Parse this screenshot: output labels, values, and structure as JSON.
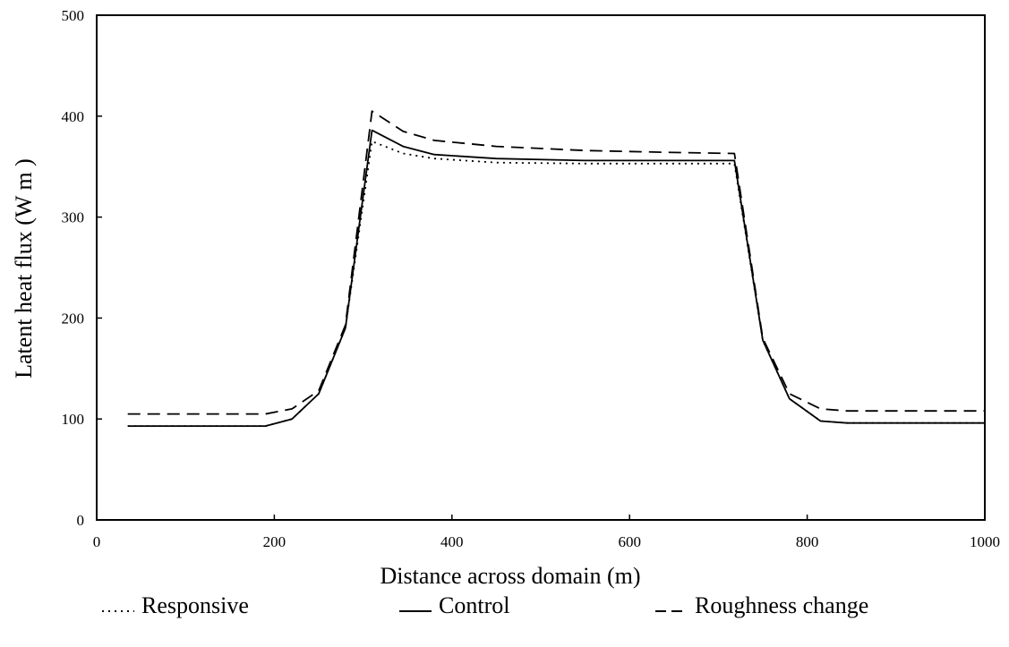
{
  "chart_data": {
    "type": "line",
    "xlabel": "Distance across domain (m)",
    "ylabel": "Latent heat flux (W m  )",
    "xlim": [
      0,
      1000
    ],
    "ylim": [
      0,
      500
    ],
    "xticks": [
      0,
      200,
      400,
      600,
      800,
      1000
    ],
    "yticks": [
      0,
      100,
      200,
      300,
      400,
      500
    ],
    "grid": false,
    "legend_position": "bottom",
    "series": [
      {
        "name": "Responsive",
        "style": "dotted",
        "x": [
          35,
          190,
          220,
          250,
          280,
          310,
          345,
          380,
          450,
          550,
          650,
          718,
          750,
          780,
          815,
          845,
          900,
          1000
        ],
        "y": [
          93,
          93,
          100,
          125,
          190,
          375,
          363,
          358,
          354,
          353,
          353,
          353,
          178,
          120,
          98,
          96,
          96,
          96
        ]
      },
      {
        "name": "Control",
        "style": "solid",
        "x": [
          35,
          190,
          220,
          250,
          280,
          310,
          345,
          380,
          450,
          550,
          650,
          718,
          750,
          780,
          815,
          845,
          900,
          1000
        ],
        "y": [
          93,
          93,
          100,
          125,
          190,
          386,
          370,
          362,
          358,
          356,
          356,
          356,
          178,
          120,
          98,
          96,
          96,
          96
        ]
      },
      {
        "name": "Roughness change",
        "style": "dashed",
        "x": [
          35,
          190,
          220,
          250,
          280,
          310,
          345,
          380,
          450,
          550,
          650,
          718,
          750,
          780,
          815,
          845,
          900,
          1000
        ],
        "y": [
          105,
          105,
          110,
          128,
          193,
          405,
          385,
          376,
          370,
          366,
          364,
          363,
          180,
          125,
          110,
          108,
          108,
          108
        ]
      }
    ]
  }
}
